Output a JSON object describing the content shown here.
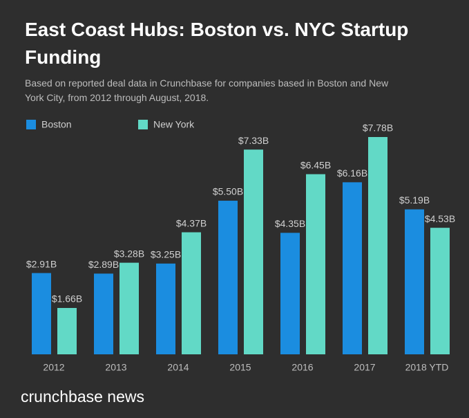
{
  "chart_data": {
    "type": "bar",
    "title": "East Coast Hubs: Boston vs. NYC Startup Funding",
    "subtitle": "Based on reported deal data in Crunchbase for companies based in Boston and New York City, from 2012 through August, 2018.",
    "categories": [
      "2012",
      "2013",
      "2014",
      "2015",
      "2016",
      "2017",
      "2018 YTD"
    ],
    "series": [
      {
        "name": "Boston",
        "color": "#1b8de0",
        "values": [
          2.91,
          2.89,
          3.25,
          5.5,
          4.35,
          6.16,
          5.19
        ],
        "value_labels": [
          "$2.91B",
          "$2.89B",
          "$3.25B",
          "$5.50B",
          "$4.35B",
          "$6.16B",
          "$5.19B"
        ]
      },
      {
        "name": "New York",
        "color": "#62d9c6",
        "values": [
          1.66,
          3.28,
          4.37,
          7.33,
          6.45,
          7.78,
          4.53
        ],
        "value_labels": [
          "$1.66B",
          "$3.28B",
          "$4.37B",
          "$7.33B",
          "$6.45B",
          "$7.78B",
          "$4.53B"
        ]
      }
    ],
    "footer": "crunchbase news"
  }
}
